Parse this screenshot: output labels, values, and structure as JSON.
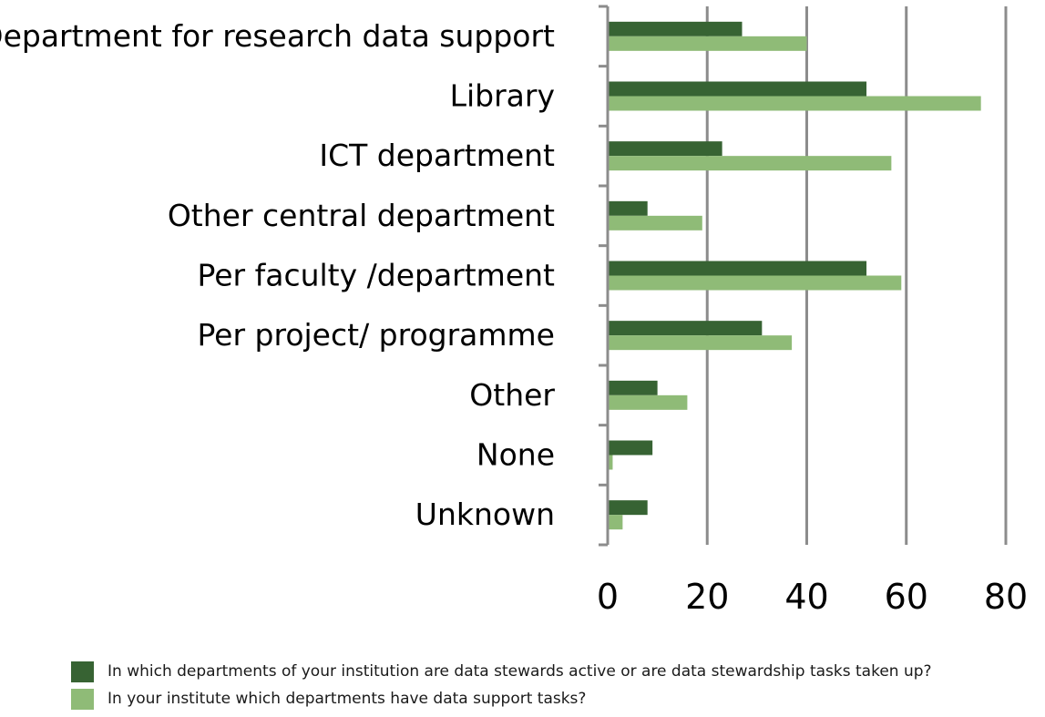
{
  "chart_data": {
    "type": "bar",
    "orientation": "horizontal",
    "categories": [
      "Department for research data support",
      "Library",
      "ICT department",
      "Other central department",
      "Per faculty /department",
      "Per project/ programme",
      "Other",
      "None",
      "Unknown"
    ],
    "series": [
      {
        "name": "In which departments of your institution are data stewards active or are data stewardship tasks taken up?",
        "color": "#376333",
        "values": [
          27,
          52,
          23,
          8,
          52,
          31,
          10,
          9,
          8
        ]
      },
      {
        "name": "In your institute which departments have data support tasks?",
        "color": "#8fbb77",
        "values": [
          40,
          75,
          57,
          19,
          59,
          37,
          16,
          1,
          3
        ]
      }
    ],
    "xlim": [
      0,
      80
    ],
    "xticks": [
      "0",
      "20",
      "40",
      "60",
      "80"
    ],
    "title": "",
    "xlabel": "",
    "ylabel": "",
    "grid": "vertical",
    "legend_position": "bottom-left"
  }
}
